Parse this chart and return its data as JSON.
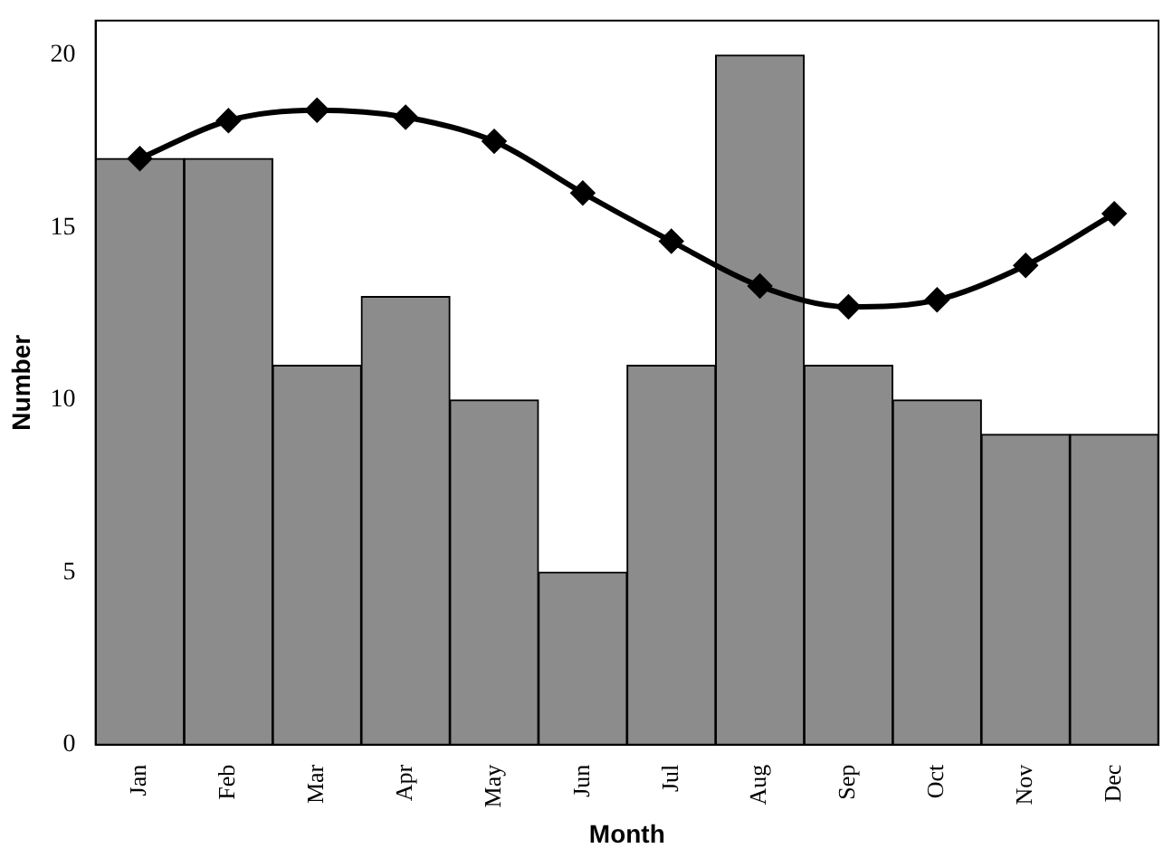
{
  "chart_data": {
    "type": "bar",
    "xlabel": "Month",
    "ylabel": "Number",
    "categories": [
      "Jan",
      "Feb",
      "Mar",
      "Apr",
      "May",
      "Jun",
      "Jul",
      "Aug",
      "Sep",
      "Oct",
      "Nov",
      "Dec"
    ],
    "series": [
      {
        "color": "#8c8c8c",
        "values": [
          17,
          17,
          11,
          13,
          10,
          5,
          11,
          20,
          11,
          10,
          9,
          9
        ]
      },
      {
        "type": "line",
        "color": "#000000",
        "marker": "diamond",
        "values": [
          17,
          18.1,
          18.4,
          18.2,
          17.5,
          16,
          14.6,
          13.3,
          12.7,
          12.9,
          13.9,
          15.4
        ]
      }
    ],
    "ylim": [
      0,
      21
    ],
    "yticks": [
      0,
      5,
      10,
      15,
      20
    ],
    "grid": false,
    "legend": false
  }
}
